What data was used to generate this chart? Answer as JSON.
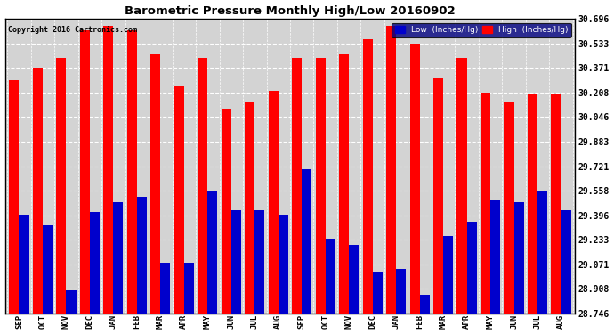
{
  "title": "Barometric Pressure Monthly High/Low 20160902",
  "copyright": "Copyright 2016 Cartronics.com",
  "legend_low": "Low  (Inches/Hg)",
  "legend_high": "High  (Inches/Hg)",
  "background_color": "#ffffff",
  "plot_bg_color": "#d3d3d3",
  "bar_width": 0.42,
  "low_color": "#0000cc",
  "high_color": "#ff0000",
  "ylim": [
    28.746,
    30.696
  ],
  "yticks": [
    28.746,
    28.908,
    29.071,
    29.233,
    29.396,
    29.558,
    29.721,
    29.883,
    30.046,
    30.208,
    30.371,
    30.533,
    30.696
  ],
  "categories": [
    "SEP",
    "OCT",
    "NOV",
    "DEC",
    "JAN",
    "FEB",
    "MAR",
    "APR",
    "MAY",
    "JUN",
    "JUL",
    "AUG",
    "SEP",
    "OCT",
    "NOV",
    "DEC",
    "JAN",
    "FEB",
    "MAR",
    "APR",
    "MAY",
    "JUN",
    "JUL",
    "AUG"
  ],
  "high_values": [
    30.29,
    30.37,
    30.44,
    30.62,
    30.65,
    30.62,
    30.46,
    30.25,
    30.44,
    30.1,
    30.14,
    30.22,
    30.44,
    30.44,
    30.46,
    30.56,
    30.65,
    30.53,
    30.3,
    30.44,
    30.21,
    30.15,
    30.2,
    30.2
  ],
  "low_values": [
    29.4,
    29.33,
    28.9,
    29.42,
    29.48,
    29.52,
    29.08,
    29.08,
    29.56,
    29.43,
    29.43,
    29.4,
    29.7,
    29.24,
    29.2,
    29.02,
    29.04,
    28.87,
    29.26,
    29.35,
    29.5,
    29.48,
    29.56,
    29.43
  ]
}
